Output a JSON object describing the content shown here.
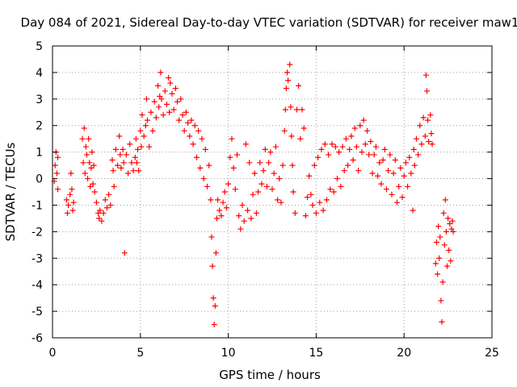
{
  "colors": {
    "series": "#ff0000",
    "grid": "#a0a0a0",
    "axis": "#000000",
    "background": "#ffffff"
  },
  "chart_data": {
    "type": "scatter",
    "title": "Day 084 of 2021, Sidereal Day-to-day VTEC variation (SDTVAR) for receiver maw1",
    "xlabel": "GPS time / hours",
    "ylabel": "SDTVAR / TECUs",
    "xlim": [
      0,
      25
    ],
    "ylim": [
      -6,
      5
    ],
    "xticks": [
      0,
      5,
      10,
      15,
      20,
      25
    ],
    "yticks": [
      -6,
      -5,
      -4,
      -3,
      -2,
      -1,
      0,
      1,
      2,
      3,
      4,
      5
    ],
    "grid": true,
    "marker": "plus",
    "series": [
      {
        "name": "maw1",
        "points": [
          [
            0.1,
            -0.1
          ],
          [
            0.15,
            0.5
          ],
          [
            0.2,
            1.0
          ],
          [
            0.25,
            0.2
          ],
          [
            0.3,
            -0.4
          ],
          [
            0.3,
            0.8
          ],
          [
            0.8,
            -0.8
          ],
          [
            0.85,
            -1.3
          ],
          [
            0.9,
            -1.0
          ],
          [
            1.0,
            -0.6
          ],
          [
            1.05,
            0.2
          ],
          [
            1.1,
            -0.4
          ],
          [
            1.15,
            -1.2
          ],
          [
            1.2,
            -0.9
          ],
          [
            1.7,
            1.5
          ],
          [
            1.75,
            0.6
          ],
          [
            1.8,
            1.9
          ],
          [
            1.85,
            0.2
          ],
          [
            1.9,
            1.2
          ],
          [
            1.95,
            0.9
          ],
          [
            2.0,
            0.0
          ],
          [
            2.05,
            1.5
          ],
          [
            2.1,
            0.6
          ],
          [
            2.15,
            -0.3
          ],
          [
            2.2,
            0.4
          ],
          [
            2.25,
            1.0
          ],
          [
            2.3,
            -0.2
          ],
          [
            2.35,
            0.5
          ],
          [
            2.4,
            -0.5
          ],
          [
            2.5,
            -0.9
          ],
          [
            2.6,
            -1.3
          ],
          [
            2.65,
            -1.5
          ],
          [
            2.7,
            -1.2
          ],
          [
            2.8,
            -1.6
          ],
          [
            2.9,
            -1.3
          ],
          [
            3.0,
            -0.8
          ],
          [
            3.1,
            -1.1
          ],
          [
            3.2,
            -0.6
          ],
          [
            3.3,
            -1.0
          ],
          [
            3.4,
            0.7
          ],
          [
            3.45,
            0.3
          ],
          [
            3.5,
            -0.3
          ],
          [
            3.6,
            1.1
          ],
          [
            3.7,
            0.5
          ],
          [
            3.8,
            1.6
          ],
          [
            3.85,
            0.9
          ],
          [
            3.9,
            0.4
          ],
          [
            4.0,
            1.1
          ],
          [
            4.05,
            0.6
          ],
          [
            4.1,
            -2.8
          ],
          [
            4.2,
            0.9
          ],
          [
            4.3,
            0.2
          ],
          [
            4.4,
            1.3
          ],
          [
            4.5,
            0.6
          ],
          [
            4.6,
            0.3
          ],
          [
            4.7,
            0.8
          ],
          [
            4.75,
            1.5
          ],
          [
            4.8,
            0.6
          ],
          [
            4.85,
            1.1
          ],
          [
            4.9,
            0.3
          ],
          [
            5.0,
            1.8
          ],
          [
            5.05,
            1.2
          ],
          [
            5.1,
            2.4
          ],
          [
            5.2,
            1.6
          ],
          [
            5.3,
            2.0
          ],
          [
            5.35,
            3.0
          ],
          [
            5.4,
            2.2
          ],
          [
            5.5,
            1.2
          ],
          [
            5.6,
            2.5
          ],
          [
            5.7,
            1.8
          ],
          [
            5.8,
            2.9
          ],
          [
            5.9,
            2.3
          ],
          [
            6.0,
            3.5
          ],
          [
            6.05,
            2.7
          ],
          [
            6.1,
            3.1
          ],
          [
            6.15,
            4.0
          ],
          [
            6.2,
            3.0
          ],
          [
            6.3,
            2.4
          ],
          [
            6.4,
            3.3
          ],
          [
            6.5,
            2.8
          ],
          [
            6.6,
            3.8
          ],
          [
            6.65,
            2.5
          ],
          [
            6.7,
            3.6
          ],
          [
            6.8,
            3.2
          ],
          [
            6.9,
            2.6
          ],
          [
            7.0,
            3.4
          ],
          [
            7.1,
            2.9
          ],
          [
            7.2,
            2.2
          ],
          [
            7.3,
            3.0
          ],
          [
            7.4,
            2.4
          ],
          [
            7.5,
            1.8
          ],
          [
            7.6,
            2.5
          ],
          [
            7.7,
            2.1
          ],
          [
            7.8,
            1.6
          ],
          [
            7.9,
            2.2
          ],
          [
            8.0,
            1.3
          ],
          [
            8.1,
            2.0
          ],
          [
            8.2,
            0.8
          ],
          [
            8.3,
            1.8
          ],
          [
            8.4,
            0.4
          ],
          [
            8.5,
            1.5
          ],
          [
            8.6,
            0.0
          ],
          [
            8.7,
            1.1
          ],
          [
            8.8,
            -0.3
          ],
          [
            8.9,
            0.5
          ],
          [
            9.0,
            -0.8
          ],
          [
            9.05,
            -2.2
          ],
          [
            9.1,
            -3.3
          ],
          [
            9.15,
            -4.5
          ],
          [
            9.2,
            -5.5
          ],
          [
            9.25,
            -4.8
          ],
          [
            9.3,
            -2.8
          ],
          [
            9.35,
            -1.5
          ],
          [
            9.4,
            -0.8
          ],
          [
            9.5,
            -1.2
          ],
          [
            9.6,
            -1.4
          ],
          [
            9.7,
            -0.9
          ],
          [
            9.8,
            -0.5
          ],
          [
            9.9,
            -1.1
          ],
          [
            10.0,
            -0.2
          ],
          [
            10.1,
            0.8
          ],
          [
            10.2,
            1.5
          ],
          [
            10.3,
            0.4
          ],
          [
            10.4,
            -0.4
          ],
          [
            10.5,
            0.9
          ],
          [
            10.6,
            -1.4
          ],
          [
            10.7,
            -1.9
          ],
          [
            10.8,
            -1.0
          ],
          [
            10.9,
            -1.6
          ],
          [
            11.0,
            1.3
          ],
          [
            11.1,
            -1.2
          ],
          [
            11.2,
            0.6
          ],
          [
            11.3,
            -1.5
          ],
          [
            11.4,
            -0.6
          ],
          [
            11.5,
            0.2
          ],
          [
            11.6,
            -1.3
          ],
          [
            11.7,
            -0.5
          ],
          [
            11.8,
            0.6
          ],
          [
            11.9,
            -0.2
          ],
          [
            12.0,
            0.3
          ],
          [
            12.1,
            1.1
          ],
          [
            12.2,
            -0.3
          ],
          [
            12.3,
            0.6
          ],
          [
            12.4,
            1.0
          ],
          [
            12.5,
            -0.4
          ],
          [
            12.6,
            0.2
          ],
          [
            12.7,
            1.2
          ],
          [
            12.8,
            -0.8
          ],
          [
            12.9,
            0.0
          ],
          [
            13.0,
            -0.9
          ],
          [
            13.1,
            0.5
          ],
          [
            13.2,
            1.8
          ],
          [
            13.25,
            2.6
          ],
          [
            13.3,
            3.4
          ],
          [
            13.35,
            4.0
          ],
          [
            13.4,
            3.7
          ],
          [
            13.5,
            4.3
          ],
          [
            13.55,
            2.7
          ],
          [
            13.6,
            1.6
          ],
          [
            13.65,
            0.5
          ],
          [
            13.7,
            -0.5
          ],
          [
            13.8,
            -1.3
          ],
          [
            13.9,
            2.6
          ],
          [
            14.0,
            3.5
          ],
          [
            14.1,
            1.5
          ],
          [
            14.2,
            2.6
          ],
          [
            14.3,
            1.9
          ],
          [
            14.4,
            -1.4
          ],
          [
            14.5,
            -0.7
          ],
          [
            14.6,
            0.1
          ],
          [
            14.7,
            -0.6
          ],
          [
            14.8,
            -1.0
          ],
          [
            14.9,
            0.5
          ],
          [
            15.0,
            -1.3
          ],
          [
            15.1,
            0.8
          ],
          [
            15.2,
            -0.9
          ],
          [
            15.3,
            1.1
          ],
          [
            15.4,
            -1.2
          ],
          [
            15.5,
            1.3
          ],
          [
            15.6,
            -0.8
          ],
          [
            15.7,
            0.9
          ],
          [
            15.8,
            -0.4
          ],
          [
            15.9,
            1.3
          ],
          [
            16.0,
            -0.5
          ],
          [
            16.1,
            1.2
          ],
          [
            16.2,
            0.0
          ],
          [
            16.3,
            1.0
          ],
          [
            16.4,
            -0.3
          ],
          [
            16.5,
            1.2
          ],
          [
            16.6,
            0.3
          ],
          [
            16.7,
            1.5
          ],
          [
            16.8,
            0.5
          ],
          [
            16.9,
            1.1
          ],
          [
            17.0,
            1.6
          ],
          [
            17.1,
            0.7
          ],
          [
            17.2,
            1.9
          ],
          [
            17.3,
            1.2
          ],
          [
            17.4,
            0.3
          ],
          [
            17.5,
            2.0
          ],
          [
            17.6,
            1.0
          ],
          [
            17.7,
            2.2
          ],
          [
            17.8,
            1.3
          ],
          [
            17.9,
            1.8
          ],
          [
            18.0,
            0.9
          ],
          [
            18.1,
            1.4
          ],
          [
            18.2,
            0.2
          ],
          [
            18.3,
            0.9
          ],
          [
            18.4,
            1.2
          ],
          [
            18.5,
            0.1
          ],
          [
            18.6,
            0.6
          ],
          [
            18.7,
            -0.2
          ],
          [
            18.8,
            0.7
          ],
          [
            18.9,
            1.1
          ],
          [
            19.0,
            -0.4
          ],
          [
            19.1,
            0.3
          ],
          [
            19.2,
            0.9
          ],
          [
            19.3,
            -0.6
          ],
          [
            19.4,
            0.2
          ],
          [
            19.5,
            0.7
          ],
          [
            19.6,
            -0.9
          ],
          [
            19.7,
            -0.3
          ],
          [
            19.8,
            0.4
          ],
          [
            19.9,
            -0.7
          ],
          [
            20.0,
            0.1
          ],
          [
            20.1,
            0.6
          ],
          [
            20.2,
            -0.3
          ],
          [
            20.3,
            0.8
          ],
          [
            20.4,
            0.2
          ],
          [
            20.5,
            -1.2
          ],
          [
            20.55,
            1.1
          ],
          [
            20.6,
            0.5
          ],
          [
            20.7,
            1.5
          ],
          [
            20.8,
            0.9
          ],
          [
            20.9,
            2.0
          ],
          [
            21.0,
            1.3
          ],
          [
            21.1,
            2.3
          ],
          [
            21.2,
            1.6
          ],
          [
            21.25,
            3.9
          ],
          [
            21.3,
            3.3
          ],
          [
            21.35,
            2.2
          ],
          [
            21.4,
            1.4
          ],
          [
            21.5,
            2.4
          ],
          [
            21.55,
            1.7
          ],
          [
            21.6,
            1.3
          ],
          [
            21.8,
            -3.2
          ],
          [
            21.85,
            -2.4
          ],
          [
            21.9,
            -3.6
          ],
          [
            21.95,
            -1.8
          ],
          [
            22.0,
            -3.0
          ],
          [
            22.05,
            -2.2
          ],
          [
            22.1,
            -4.6
          ],
          [
            22.15,
            -5.4
          ],
          [
            22.2,
            -3.9
          ],
          [
            22.25,
            -1.3
          ],
          [
            22.3,
            -2.5
          ],
          [
            22.35,
            -0.8
          ],
          [
            22.4,
            -2.0
          ],
          [
            22.45,
            -3.3
          ],
          [
            22.5,
            -1.5
          ],
          [
            22.55,
            -2.7
          ],
          [
            22.6,
            -1.7
          ],
          [
            22.65,
            -3.1
          ],
          [
            22.7,
            -1.9
          ],
          [
            22.75,
            -1.6
          ],
          [
            22.8,
            -2.0
          ]
        ]
      }
    ]
  }
}
